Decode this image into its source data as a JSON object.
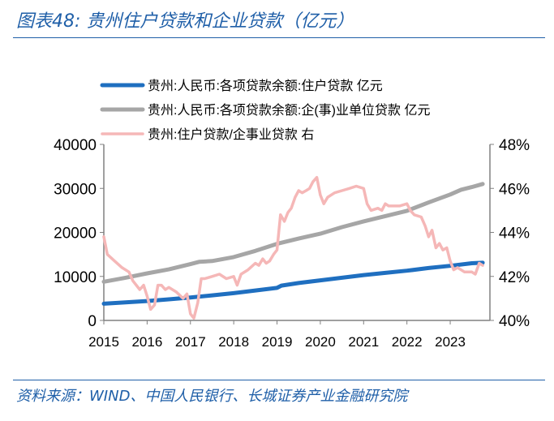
{
  "header": {
    "title": "图表48:  贵州住户贷款和企业贷款（亿元）"
  },
  "footer": {
    "source": "资料来源：WIND、中国人民银行、长城证券产业金融研究院"
  },
  "chart_data": {
    "type": "line",
    "title": "贵州住户贷款和企业贷款（亿元）",
    "x_ticks": [
      "2015",
      "2016",
      "2017",
      "2018",
      "2019",
      "2020",
      "2021",
      "2022",
      "2023"
    ],
    "y_left": {
      "ticks": [
        "0",
        "10000",
        "20000",
        "30000",
        "40000"
      ],
      "range": [
        0,
        40000
      ],
      "unit": "亿元"
    },
    "y_right": {
      "ticks": [
        "40%",
        "42%",
        "44%",
        "46%",
        "48%"
      ],
      "range": [
        40,
        48
      ],
      "unit": "%"
    },
    "legend": [
      {
        "label": "贵州:人民币:各项贷款余额:住户贷款  亿元",
        "color": "#1f6fc0"
      },
      {
        "label": "贵州:人民币:各项贷款余额:企(事)业单位贷款  亿元",
        "color": "#a6a6a6"
      },
      {
        "label": "贵州:住户贷款/企事业贷款  右",
        "color": "#f5b7b7"
      }
    ],
    "series": [
      {
        "name": "贵州:人民币:各项贷款余额:住户贷款",
        "axis": "left",
        "color": "#1f6fc0",
        "points": [
          [
            2015.0,
            3800
          ],
          [
            2015.5,
            4100
          ],
          [
            2016.0,
            4400
          ],
          [
            2016.5,
            4800
          ],
          [
            2017.0,
            5200
          ],
          [
            2017.5,
            5700
          ],
          [
            2018.0,
            6200
          ],
          [
            2018.5,
            6800
          ],
          [
            2019.0,
            7400
          ],
          [
            2019.1,
            7900
          ],
          [
            2019.5,
            8500
          ],
          [
            2020.0,
            9100
          ],
          [
            2020.5,
            9700
          ],
          [
            2021.0,
            10300
          ],
          [
            2021.5,
            10800
          ],
          [
            2022.0,
            11300
          ],
          [
            2022.5,
            11900
          ],
          [
            2023.0,
            12400
          ],
          [
            2023.5,
            13000
          ],
          [
            2023.75,
            13100
          ]
        ]
      },
      {
        "name": "贵州:人民币:各项贷款余额:企(事)业单位贷款",
        "axis": "left",
        "color": "#a6a6a6",
        "points": [
          [
            2015.0,
            8800
          ],
          [
            2015.5,
            9700
          ],
          [
            2016.0,
            10700
          ],
          [
            2016.5,
            11600
          ],
          [
            2017.0,
            12800
          ],
          [
            2017.2,
            13300
          ],
          [
            2017.5,
            13500
          ],
          [
            2018.0,
            14400
          ],
          [
            2018.5,
            15800
          ],
          [
            2019.0,
            17400
          ],
          [
            2019.5,
            18600
          ],
          [
            2020.0,
            19700
          ],
          [
            2020.5,
            21200
          ],
          [
            2021.0,
            22500
          ],
          [
            2021.5,
            23700
          ],
          [
            2022.0,
            24900
          ],
          [
            2022.5,
            26800
          ],
          [
            2023.0,
            28600
          ],
          [
            2023.25,
            29700
          ],
          [
            2023.5,
            30300
          ],
          [
            2023.75,
            31000
          ]
        ]
      },
      {
        "name": "贵州:住户贷款/企事业贷款",
        "axis": "right",
        "color": "#f5b7b7",
        "points": [
          [
            2015.0,
            43.8
          ],
          [
            2015.08,
            43.0
          ],
          [
            2015.25,
            42.7
          ],
          [
            2015.42,
            42.4
          ],
          [
            2015.58,
            42.2
          ],
          [
            2015.67,
            41.8
          ],
          [
            2015.83,
            41.4
          ],
          [
            2015.92,
            41.6
          ],
          [
            2016.0,
            41.1
          ],
          [
            2016.08,
            40.5
          ],
          [
            2016.17,
            40.7
          ],
          [
            2016.25,
            41.6
          ],
          [
            2016.33,
            41.6
          ],
          [
            2016.42,
            41.4
          ],
          [
            2016.5,
            41.5
          ],
          [
            2016.67,
            41.3
          ],
          [
            2016.83,
            41.0
          ],
          [
            2016.92,
            41.2
          ],
          [
            2017.0,
            40.3
          ],
          [
            2017.08,
            40.1
          ],
          [
            2017.17,
            40.8
          ],
          [
            2017.25,
            41.9
          ],
          [
            2017.33,
            41.9
          ],
          [
            2017.5,
            42.0
          ],
          [
            2017.67,
            42.1
          ],
          [
            2017.83,
            41.9
          ],
          [
            2018.0,
            42.0
          ],
          [
            2018.08,
            41.6
          ],
          [
            2018.17,
            42.1
          ],
          [
            2018.33,
            42.3
          ],
          [
            2018.5,
            42.6
          ],
          [
            2018.58,
            42.5
          ],
          [
            2018.67,
            42.8
          ],
          [
            2018.75,
            42.6
          ],
          [
            2018.83,
            42.7
          ],
          [
            2018.92,
            43.0
          ],
          [
            2019.0,
            43.2
          ],
          [
            2019.08,
            44.8
          ],
          [
            2019.17,
            44.5
          ],
          [
            2019.25,
            44.9
          ],
          [
            2019.33,
            45.1
          ],
          [
            2019.42,
            45.6
          ],
          [
            2019.5,
            45.9
          ],
          [
            2019.58,
            45.8
          ],
          [
            2019.67,
            45.9
          ],
          [
            2019.75,
            46.0
          ],
          [
            2019.83,
            46.3
          ],
          [
            2019.92,
            46.5
          ],
          [
            2020.0,
            45.7
          ],
          [
            2020.08,
            45.3
          ],
          [
            2020.17,
            45.6
          ],
          [
            2020.33,
            45.8
          ],
          [
            2020.5,
            45.9
          ],
          [
            2020.67,
            46.0
          ],
          [
            2020.83,
            46.1
          ],
          [
            2021.0,
            46.0
          ],
          [
            2021.08,
            45.3
          ],
          [
            2021.17,
            45.0
          ],
          [
            2021.33,
            45.1
          ],
          [
            2021.42,
            45.0
          ],
          [
            2021.5,
            45.3
          ],
          [
            2021.58,
            45.2
          ],
          [
            2021.67,
            45.2
          ],
          [
            2021.83,
            45.2
          ],
          [
            2022.0,
            45.3
          ],
          [
            2022.08,
            45.0
          ],
          [
            2022.17,
            44.8
          ],
          [
            2022.33,
            44.7
          ],
          [
            2022.42,
            44.3
          ],
          [
            2022.5,
            43.8
          ],
          [
            2022.58,
            44.1
          ],
          [
            2022.67,
            43.3
          ],
          [
            2022.75,
            43.5
          ],
          [
            2022.83,
            43.2
          ],
          [
            2022.92,
            43.3
          ],
          [
            2023.0,
            42.7
          ],
          [
            2023.08,
            42.3
          ],
          [
            2023.17,
            42.4
          ],
          [
            2023.33,
            42.2
          ],
          [
            2023.5,
            42.2
          ],
          [
            2023.58,
            42.1
          ],
          [
            2023.67,
            42.6
          ],
          [
            2023.75,
            42.5
          ]
        ]
      }
    ]
  }
}
